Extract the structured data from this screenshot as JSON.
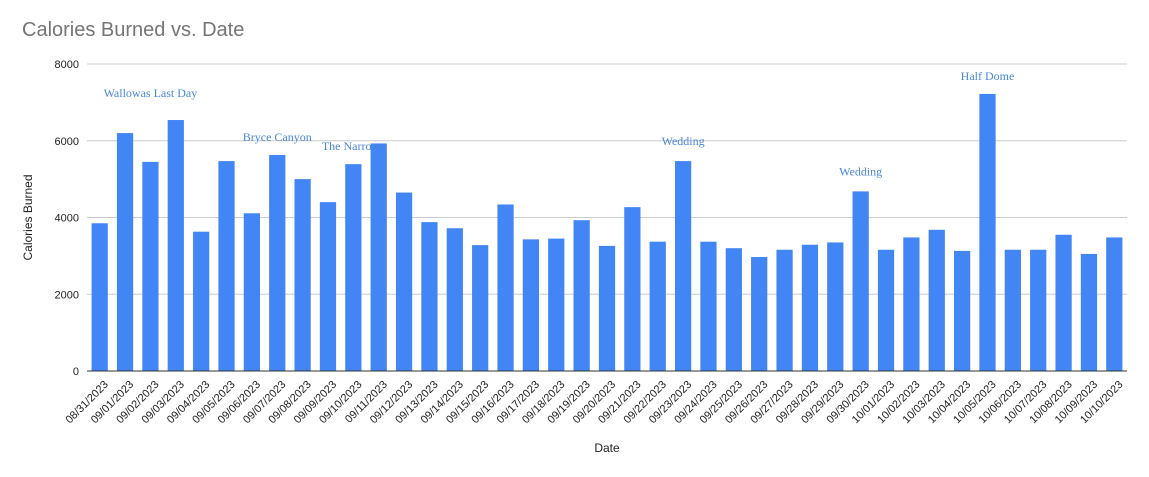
{
  "chart_data": {
    "type": "bar",
    "title": "Calories Burned vs. Date",
    "xlabel": "Date",
    "ylabel": "Calories Burned",
    "ylim": [
      0,
      8000
    ],
    "yticks": [
      0,
      2000,
      4000,
      6000,
      8000
    ],
    "grid": true,
    "bar_color": "#4285f4",
    "categories": [
      "08/31/2023",
      "09/01/2023",
      "09/02/2023",
      "09/03/2023",
      "09/04/2023",
      "09/05/2023",
      "09/06/2023",
      "09/07/2023",
      "09/08/2023",
      "09/09/2023",
      "09/10/2023",
      "09/11/2023",
      "09/12/2023",
      "09/13/2023",
      "09/14/2023",
      "09/15/2023",
      "09/16/2023",
      "09/17/2023",
      "09/18/2023",
      "09/19/2023",
      "09/20/2023",
      "09/21/2023",
      "09/22/2023",
      "09/23/2023",
      "09/24/2023",
      "09/25/2023",
      "09/26/2023",
      "09/27/2023",
      "09/28/2023",
      "09/29/2023",
      "09/30/2023",
      "10/01/2023",
      "10/02/2023",
      "10/03/2023",
      "10/04/2023",
      "10/05/2023",
      "10/06/2023",
      "10/07/2023",
      "10/08/2023",
      "10/09/2023",
      "10/10/2023"
    ],
    "values": [
      3850,
      6200,
      5450,
      6540,
      3630,
      5470,
      4110,
      5630,
      5000,
      4400,
      5390,
      5930,
      4650,
      3880,
      3720,
      3280,
      4340,
      3430,
      3450,
      3930,
      3260,
      4270,
      3370,
      5470,
      3370,
      3200,
      2970,
      3160,
      3290,
      3350,
      4680,
      3160,
      3480,
      3680,
      3130,
      7220,
      3160,
      3160,
      3550,
      3050,
      3480
    ],
    "annotations": [
      {
        "label": "Wallowas Last Day",
        "category": "09/02/2023"
      },
      {
        "label": "Bryce Canyon",
        "category": "09/07/2023"
      },
      {
        "label": "The Narrows",
        "category": "09/10/2023"
      },
      {
        "label": "Wedding",
        "category": "09/23/2023"
      },
      {
        "label": "Wedding",
        "category": "09/30/2023"
      },
      {
        "label": "Half Dome",
        "category": "10/05/2023"
      }
    ],
    "annotation_color": "#4a86d8"
  }
}
